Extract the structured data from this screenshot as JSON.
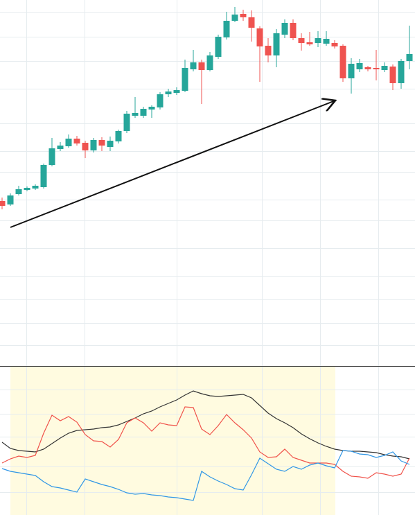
{
  "chart_data": [
    {
      "type": "candlestick",
      "up_color": "#26a69a",
      "down_color": "#ef5350",
      "ylim": [
        0,
        530
      ],
      "open": [
        240,
        235,
        250,
        256,
        258,
        260,
        292,
        315,
        319,
        330,
        324,
        313,
        328,
        318,
        326,
        341,
        363,
        363,
        372,
        375,
        394,
        396,
        399,
        430,
        440,
        429,
        448,
        476,
        500,
        510,
        505,
        489,
        464,
        450,
        480,
        497,
        475,
        469,
        468,
        467,
        468,
        464,
        417,
        430,
        433,
        432,
        429,
        434,
        410,
        442
      ],
      "high": [
        245,
        251,
        262,
        261,
        264,
        294,
        331,
        325,
        336,
        334,
        327,
        331,
        332,
        333,
        343,
        370,
        390,
        376,
        378,
        397,
        402,
        404,
        444,
        458,
        444,
        455,
        480,
        513,
        520,
        516,
        515,
        492,
        475,
        488,
        502,
        502,
        482,
        484,
        485,
        485,
        472,
        466,
        446,
        445,
        435,
        458,
        440,
        437,
        445,
        493
      ],
      "low": [
        228,
        233,
        248,
        254,
        256,
        258,
        290,
        312,
        317,
        320,
        302,
        310,
        312,
        312,
        323,
        338,
        360,
        360,
        360,
        372,
        390,
        393,
        397,
        427,
        380,
        427,
        445,
        473,
        498,
        500,
        470,
        412,
        440,
        433,
        475,
        472,
        457,
        464,
        462,
        464,
        460,
        412,
        395,
        426,
        427,
        414,
        426,
        400,
        402,
        430
      ],
      "close": [
        233,
        248,
        257,
        259,
        262,
        292,
        316,
        320,
        330,
        323,
        313,
        328,
        320,
        327,
        341,
        366,
        367,
        373,
        376,
        394,
        398,
        400,
        432,
        440,
        429,
        450,
        477,
        500,
        509,
        505,
        490,
        463,
        450,
        482,
        497,
        475,
        468,
        466,
        475,
        474,
        463,
        417,
        438,
        439,
        430,
        430,
        435,
        410,
        442,
        452
      ]
    },
    {
      "type": "line",
      "ylim": [
        0,
        215
      ],
      "series": [
        {
          "color": "#333333",
          "values": [
            105,
            96,
            93,
            92,
            91,
            95,
            103,
            111,
            118,
            122,
            123,
            124,
            126,
            127,
            130,
            135,
            140,
            146,
            150,
            156,
            161,
            166,
            173,
            179,
            175,
            172,
            171,
            172,
            173,
            174,
            169,
            158,
            147,
            139,
            133,
            126,
            117,
            110,
            104,
            99,
            95,
            93,
            92,
            92,
            91,
            90,
            87,
            85,
            84,
            81
          ]
        },
        {
          "color": "#f0524a",
          "values": [
            75,
            81,
            85,
            83,
            86,
            118,
            144,
            136,
            142,
            134,
            116,
            107,
            106,
            98,
            109,
            133,
            140,
            133,
            121,
            133,
            130,
            129,
            156,
            155,
            124,
            116,
            129,
            145,
            133,
            123,
            111,
            91,
            83,
            84,
            95,
            83,
            79,
            75,
            75,
            75,
            73,
            63,
            56,
            55,
            53,
            61,
            59,
            56,
            59,
            82
          ]
        },
        {
          "color": "#2f96e6",
          "values": [
            67,
            63,
            61,
            59,
            57,
            48,
            41,
            39,
            36,
            33,
            52,
            48,
            44,
            41,
            37,
            32,
            30,
            31,
            29,
            28,
            26,
            25,
            23,
            21,
            63,
            55,
            49,
            44,
            38,
            36,
            58,
            82,
            74,
            66,
            63,
            70,
            66,
            72,
            75,
            71,
            68,
            93,
            92,
            88,
            87,
            83,
            86,
            91,
            78,
            73
          ]
        }
      ]
    }
  ]
}
